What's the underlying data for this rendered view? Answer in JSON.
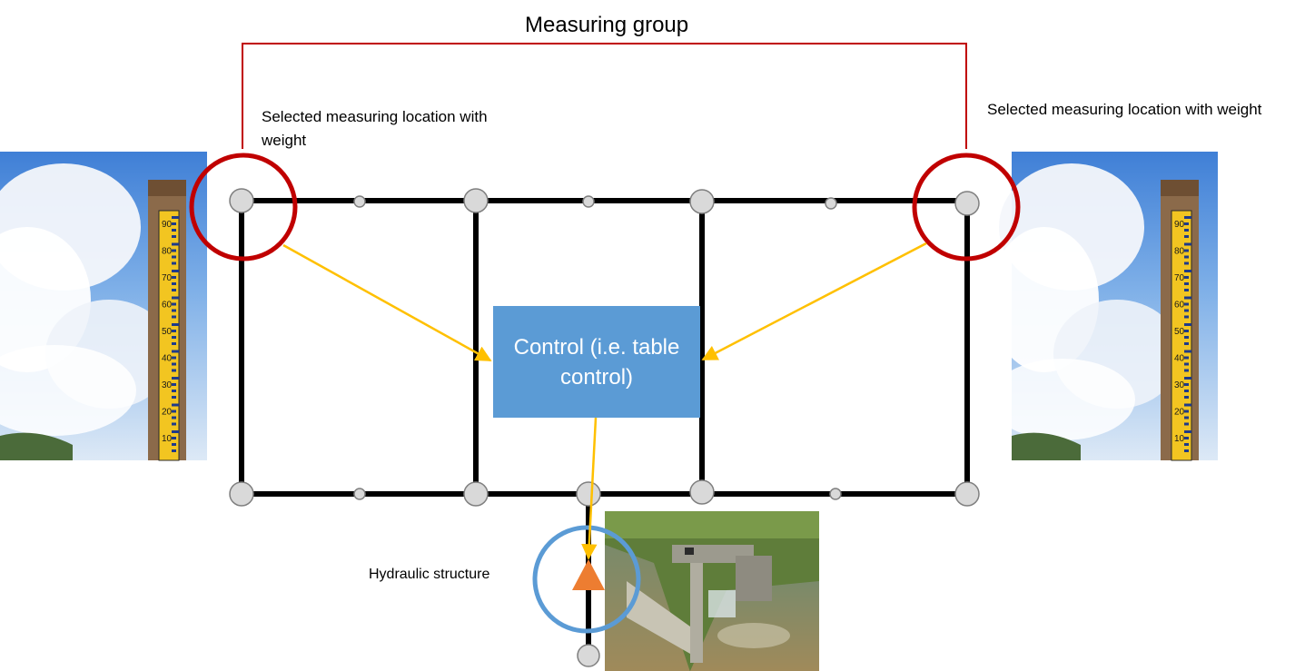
{
  "title": "Measuring group",
  "labels": {
    "left_location": "Selected measuring location with weight",
    "right_location": "Selected measuring location with weight",
    "hydraulic": "Hydraulic structure"
  },
  "control": {
    "text": "Control (i.e. table control)"
  },
  "images": {
    "left_photo": "staff-gauge-photo",
    "right_photo": "staff-gauge-photo",
    "structure_photo": "weir-structure-photo",
    "gauge_marks": [
      "90",
      "80",
      "70",
      "60",
      "50",
      "40",
      "30",
      "20",
      "10"
    ]
  },
  "colors": {
    "group_bracket": "#c00000",
    "selected_circle": "#c00000",
    "arrows": "#ffc000",
    "control_box": "#5b9bd5",
    "hydraulic_circle": "#5b9bd5",
    "hydraulic_marker": "#ed7d31",
    "network_line": "#000000",
    "node_fill": "#d9d9d9"
  }
}
